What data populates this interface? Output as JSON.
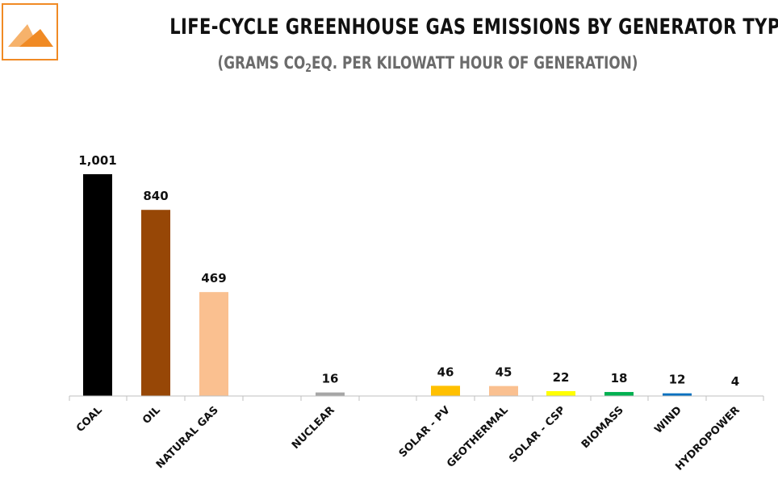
{
  "logo": {
    "name": "triangle-logo",
    "colors": [
      "#f08a24",
      "#f6b26b"
    ]
  },
  "header": {
    "title": "LIFE-CYCLE GREENHOUSE GAS EMISSIONS BY GENERATOR TYPE",
    "subtitle_pre": "(GRAMS CO",
    "subtitle_sub": "2",
    "subtitle_post": "EQ. PER KILOWATT HOUR OF GENERATION)"
  },
  "chart_data": {
    "type": "bar",
    "title": "LIFE-CYCLE GREENHOUSE GAS EMISSIONS BY GENERATOR TYPE",
    "subtitle": "(GRAMS CO2EQ. PER KILOWATT HOUR OF GENERATION)",
    "xlabel": "",
    "ylabel": "",
    "categories": [
      "COAL",
      "OIL",
      "NATURAL GAS",
      "NUCLEAR",
      "SOLAR - PV",
      "GEOTHERMAL",
      "SOLAR - CSP",
      "BIOMASS",
      "WIND",
      "HYDROPOWER"
    ],
    "values": [
      1001,
      840,
      469,
      16,
      46,
      45,
      22,
      18,
      12,
      4
    ],
    "value_labels": [
      "1,001",
      "840",
      "469",
      "16",
      "46",
      "45",
      "22",
      "18",
      "12",
      "4"
    ],
    "colors": [
      "#000000",
      "#974706",
      "#fac090",
      "#a6a6a6",
      "#ffc000",
      "#fac090",
      "#ffff00",
      "#00b050",
      "#0070c0",
      "#ffffff"
    ],
    "ylim": [
      0,
      1001
    ],
    "grid": false,
    "legend": "none"
  }
}
